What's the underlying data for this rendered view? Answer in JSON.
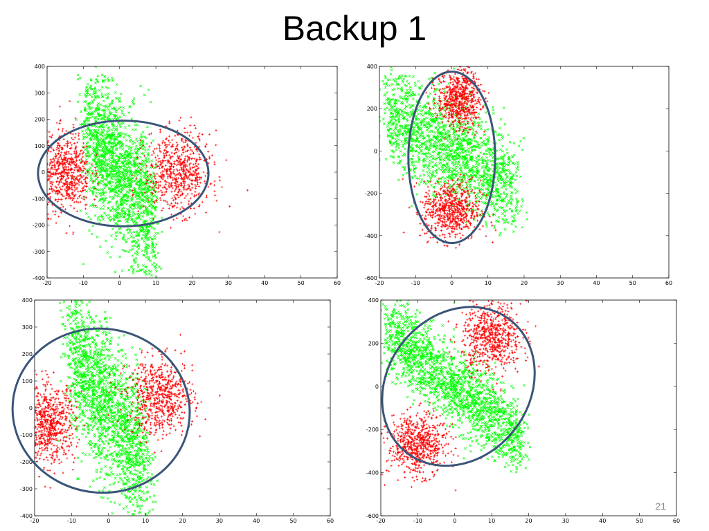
{
  "slide": {
    "title": "Backup 1",
    "page_number": "21"
  },
  "colors": {
    "series_plus": "#ff0000",
    "series_x": "#00ff00",
    "ellipse": "#3a5578"
  },
  "chart_data": [
    {
      "id": "top-left",
      "type": "scatter",
      "xlim": [
        -20,
        60
      ],
      "ylim": [
        -400,
        400
      ],
      "xticks": [
        -20,
        -10,
        0,
        10,
        20,
        30,
        40,
        50,
        60
      ],
      "yticks": [
        -400,
        -300,
        -200,
        -100,
        0,
        100,
        200,
        300,
        400
      ],
      "series": [
        {
          "marker": "x",
          "color": "#00ff00",
          "dist": "band",
          "center": [
            0,
            0
          ],
          "halfwidth": 9,
          "slope": -18,
          "ysd": 140,
          "yclip": 400
        },
        {
          "marker": "+",
          "color": "#ff0000",
          "dist": "gauss",
          "center": [
            -15,
            0
          ],
          "sd": [
            3.5,
            75
          ]
        },
        {
          "marker": "+",
          "color": "#ff0000",
          "dist": "gauss",
          "center": [
            16,
            0
          ],
          "sd": [
            4.5,
            75
          ]
        }
      ],
      "overlay_ellipse": {
        "center": [
          1,
          -5
        ],
        "rx": 23.5,
        "ry": 200,
        "angle": 0
      }
    },
    {
      "id": "top-right",
      "type": "scatter",
      "xlim": [
        -20,
        60
      ],
      "ylim": [
        -600,
        400
      ],
      "xticks": [
        -20,
        -10,
        0,
        10,
        20,
        30,
        40,
        50,
        60
      ],
      "yticks": [
        -600,
        -400,
        -200,
        0,
        200,
        400
      ],
      "series": [
        {
          "marker": "x",
          "color": "#00ff00",
          "dist": "band",
          "center": [
            0,
            0
          ],
          "halfwidth": 18,
          "slope": -10,
          "ysd": 120,
          "yclip": 400
        },
        {
          "marker": "+",
          "color": "#ff0000",
          "dist": "gauss",
          "center": [
            2,
            250
          ],
          "sd": [
            3,
            70
          ]
        },
        {
          "marker": "+",
          "color": "#ff0000",
          "dist": "gauss",
          "center": [
            0,
            -280
          ],
          "sd": [
            4,
            70
          ]
        }
      ],
      "overlay_ellipse": {
        "center": [
          0,
          -30
        ],
        "rx": 12,
        "ry": 405,
        "angle": 0
      }
    },
    {
      "id": "bottom-left",
      "type": "scatter",
      "xlim": [
        -20,
        60
      ],
      "ylim": [
        -400,
        400
      ],
      "xticks": [
        -20,
        -10,
        0,
        10,
        20,
        30,
        40,
        50,
        60
      ],
      "yticks": [
        -400,
        -300,
        -200,
        -100,
        0,
        100,
        200,
        300,
        400
      ],
      "series": [
        {
          "marker": "x",
          "color": "#00ff00",
          "dist": "band",
          "center": [
            0,
            0
          ],
          "halfwidth": 10,
          "slope": -20,
          "ysd": 140,
          "yclip": 400
        },
        {
          "marker": "+",
          "color": "#ff0000",
          "dist": "gauss",
          "center": [
            -16,
            -60
          ],
          "sd": [
            3.5,
            70
          ]
        },
        {
          "marker": "+",
          "color": "#ff0000",
          "dist": "gauss",
          "center": [
            14,
            40
          ],
          "sd": [
            4.5,
            70
          ]
        }
      ],
      "overlay_ellipse": {
        "center": [
          -2,
          -10
        ],
        "rx": 24,
        "ry": 190,
        "angle": -8
      }
    },
    {
      "id": "bottom-right",
      "type": "scatter",
      "xlim": [
        -20,
        60
      ],
      "ylim": [
        -600,
        400
      ],
      "xticks": [
        -20,
        -10,
        0,
        10,
        20,
        30,
        40,
        50,
        60
      ],
      "yticks": [
        -600,
        -400,
        -200,
        0,
        200,
        400
      ],
      "series": [
        {
          "marker": "x",
          "color": "#00ff00",
          "dist": "band",
          "center": [
            0,
            0
          ],
          "halfwidth": 18,
          "slope": -14,
          "ysd": 90,
          "yclip": 400
        },
        {
          "marker": "+",
          "color": "#ff0000",
          "dist": "gauss",
          "center": [
            10,
            230
          ],
          "sd": [
            4,
            80
          ]
        },
        {
          "marker": "+",
          "color": "#ff0000",
          "dist": "gauss",
          "center": [
            -10,
            -270
          ],
          "sd": [
            4,
            70
          ]
        }
      ],
      "overlay_ellipse": {
        "center": [
          1,
          0
        ],
        "rx": 12,
        "ry": 390,
        "angle": 52
      }
    }
  ]
}
